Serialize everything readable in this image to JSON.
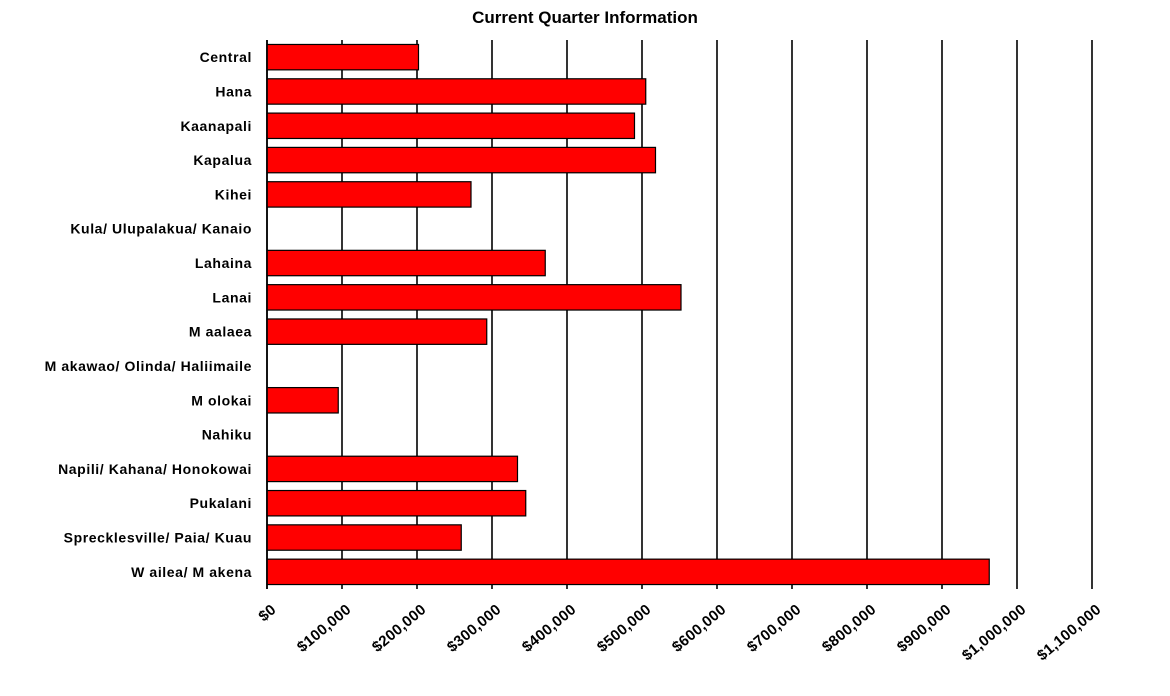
{
  "chart_data": {
    "type": "bar",
    "orientation": "horizontal",
    "title": "Current Quarter Information",
    "categories": [
      "Central",
      "Hana",
      "Kaanapali",
      "Kapalua",
      "Kihei",
      "Kula/ Ulupalakua/ Kanaio",
      "Lahaina",
      "Lanai",
      "M aalaea",
      "M akawao/ Olinda/ Haliimaile",
      "M olokai",
      "Nahiku",
      "Napili/ Kahana/ Honokowai",
      "Pukalani",
      "Sprecklesville/ Paia/ Kuau",
      "W ailea/ M akena"
    ],
    "values": [
      202000,
      505000,
      490000,
      518000,
      272000,
      0,
      371000,
      552000,
      293000,
      0,
      95000,
      0,
      334000,
      345000,
      259000,
      963000
    ],
    "xlim": [
      0,
      1100000
    ],
    "xticks": [
      0,
      100000,
      200000,
      300000,
      400000,
      500000,
      600000,
      700000,
      800000,
      900000,
      1000000,
      1100000
    ],
    "xtick_labels": [
      "$0",
      "$100,000",
      "$200,000",
      "$300,000",
      "$400,000",
      "$500,000",
      "$600,000",
      "$700,000",
      "$800,000",
      "$900,000",
      "$1,000,000",
      "$1,100,000"
    ],
    "xlabel": "",
    "ylabel": "",
    "grid": "vertical major gridlines",
    "legend": "none",
    "bar_color": "#ff0000"
  }
}
